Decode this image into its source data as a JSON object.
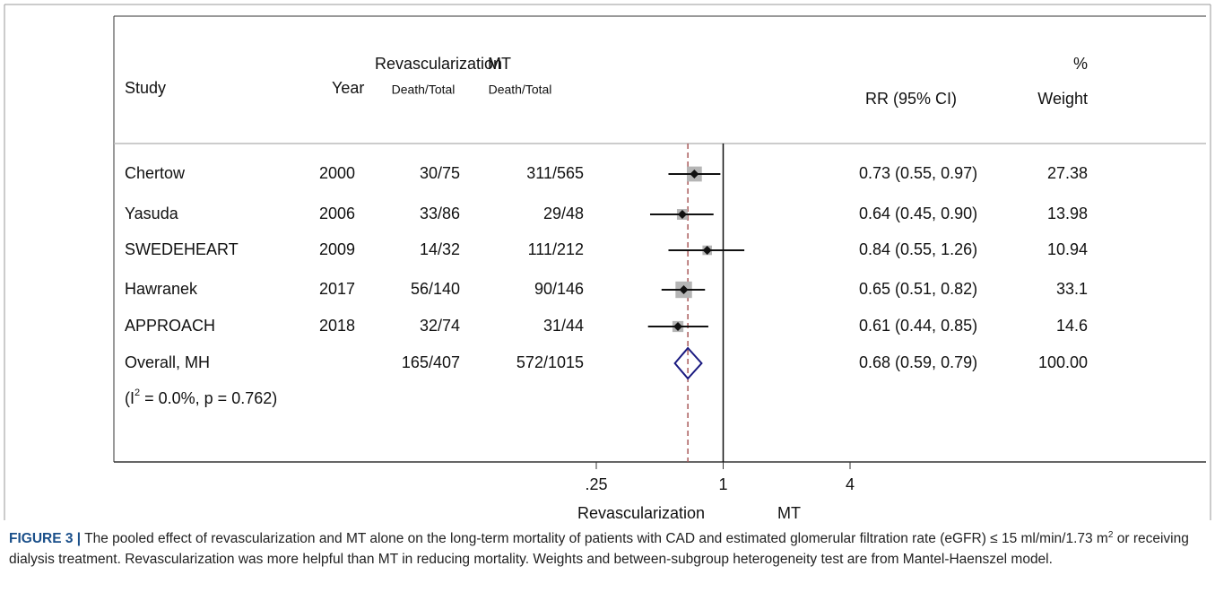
{
  "chart_data": {
    "type": "forest",
    "columns": {
      "study": "Study",
      "year": "Year",
      "group1": "Revascularization",
      "group2": "MT",
      "sub1": "Death/Total",
      "sub2": "Death/Total",
      "rr": "RR (95% CI)",
      "weight_top": "%",
      "weight": "Weight"
    },
    "studies": [
      {
        "name": "Chertow",
        "year": "2000",
        "g1": "30/75",
        "g2": "311/565",
        "rr": 0.73,
        "lo": 0.55,
        "hi": 0.97,
        "ci": "0.73 (0.55, 0.97)",
        "weight": 27.38
      },
      {
        "name": "Yasuda",
        "year": "2006",
        "g1": "33/86",
        "g2": "29/48",
        "rr": 0.64,
        "lo": 0.45,
        "hi": 0.9,
        "ci": "0.64 (0.45, 0.90)",
        "weight": 13.98
      },
      {
        "name": "SWEDEHEART",
        "year": "2009",
        "g1": "14/32",
        "g2": "111/212",
        "rr": 0.84,
        "lo": 0.55,
        "hi": 1.26,
        "ci": "0.84 (0.55, 1.26)",
        "weight": 10.94
      },
      {
        "name": "Hawranek",
        "year": "2017",
        "g1": "56/140",
        "g2": "90/146",
        "rr": 0.65,
        "lo": 0.51,
        "hi": 0.82,
        "ci": "0.65 (0.51, 0.82)",
        "weight": 33.1
      },
      {
        "name": "APPROACH",
        "year": "2018",
        "g1": "32/74",
        "g2": "31/44",
        "rr": 0.61,
        "lo": 0.44,
        "hi": 0.85,
        "ci": "0.61 (0.44, 0.85)",
        "weight": 14.6
      }
    ],
    "overall": {
      "name": "Overall, MH",
      "g1": "165/407",
      "g2": "572/1015",
      "rr": 0.68,
      "lo": 0.59,
      "hi": 0.79,
      "ci": "0.68 (0.59, 0.79)",
      "weight": 100,
      "weight_label": "100.00"
    },
    "heterogeneity": {
      "prefix": "(I",
      "sup": "2",
      "rest": " = 0.0%, p = 0.762)"
    },
    "log_scale": true,
    "xlim": [
      0.25,
      4
    ],
    "xticks": [
      {
        "value": 0.25,
        "label": ".25"
      },
      1,
      4
    ],
    "xlabel_left": "Revascularization",
    "xlabel_right": "MT",
    "caption": {
      "label": "FIGURE 3 |",
      "text1": " The pooled effect of revascularization and MT alone on the long-term mortality of patients with CAD and estimated glomerular filtration rate (eGFR) ≤ 15 ml/min/1.73 m",
      "sup": "2",
      "text2": " or receiving dialysis treatment. Revascularization was more helpful than MT in reducing mortality. Weights and between-subgroup heterogeneity test are from Mantel-Haenszel model."
    }
  }
}
